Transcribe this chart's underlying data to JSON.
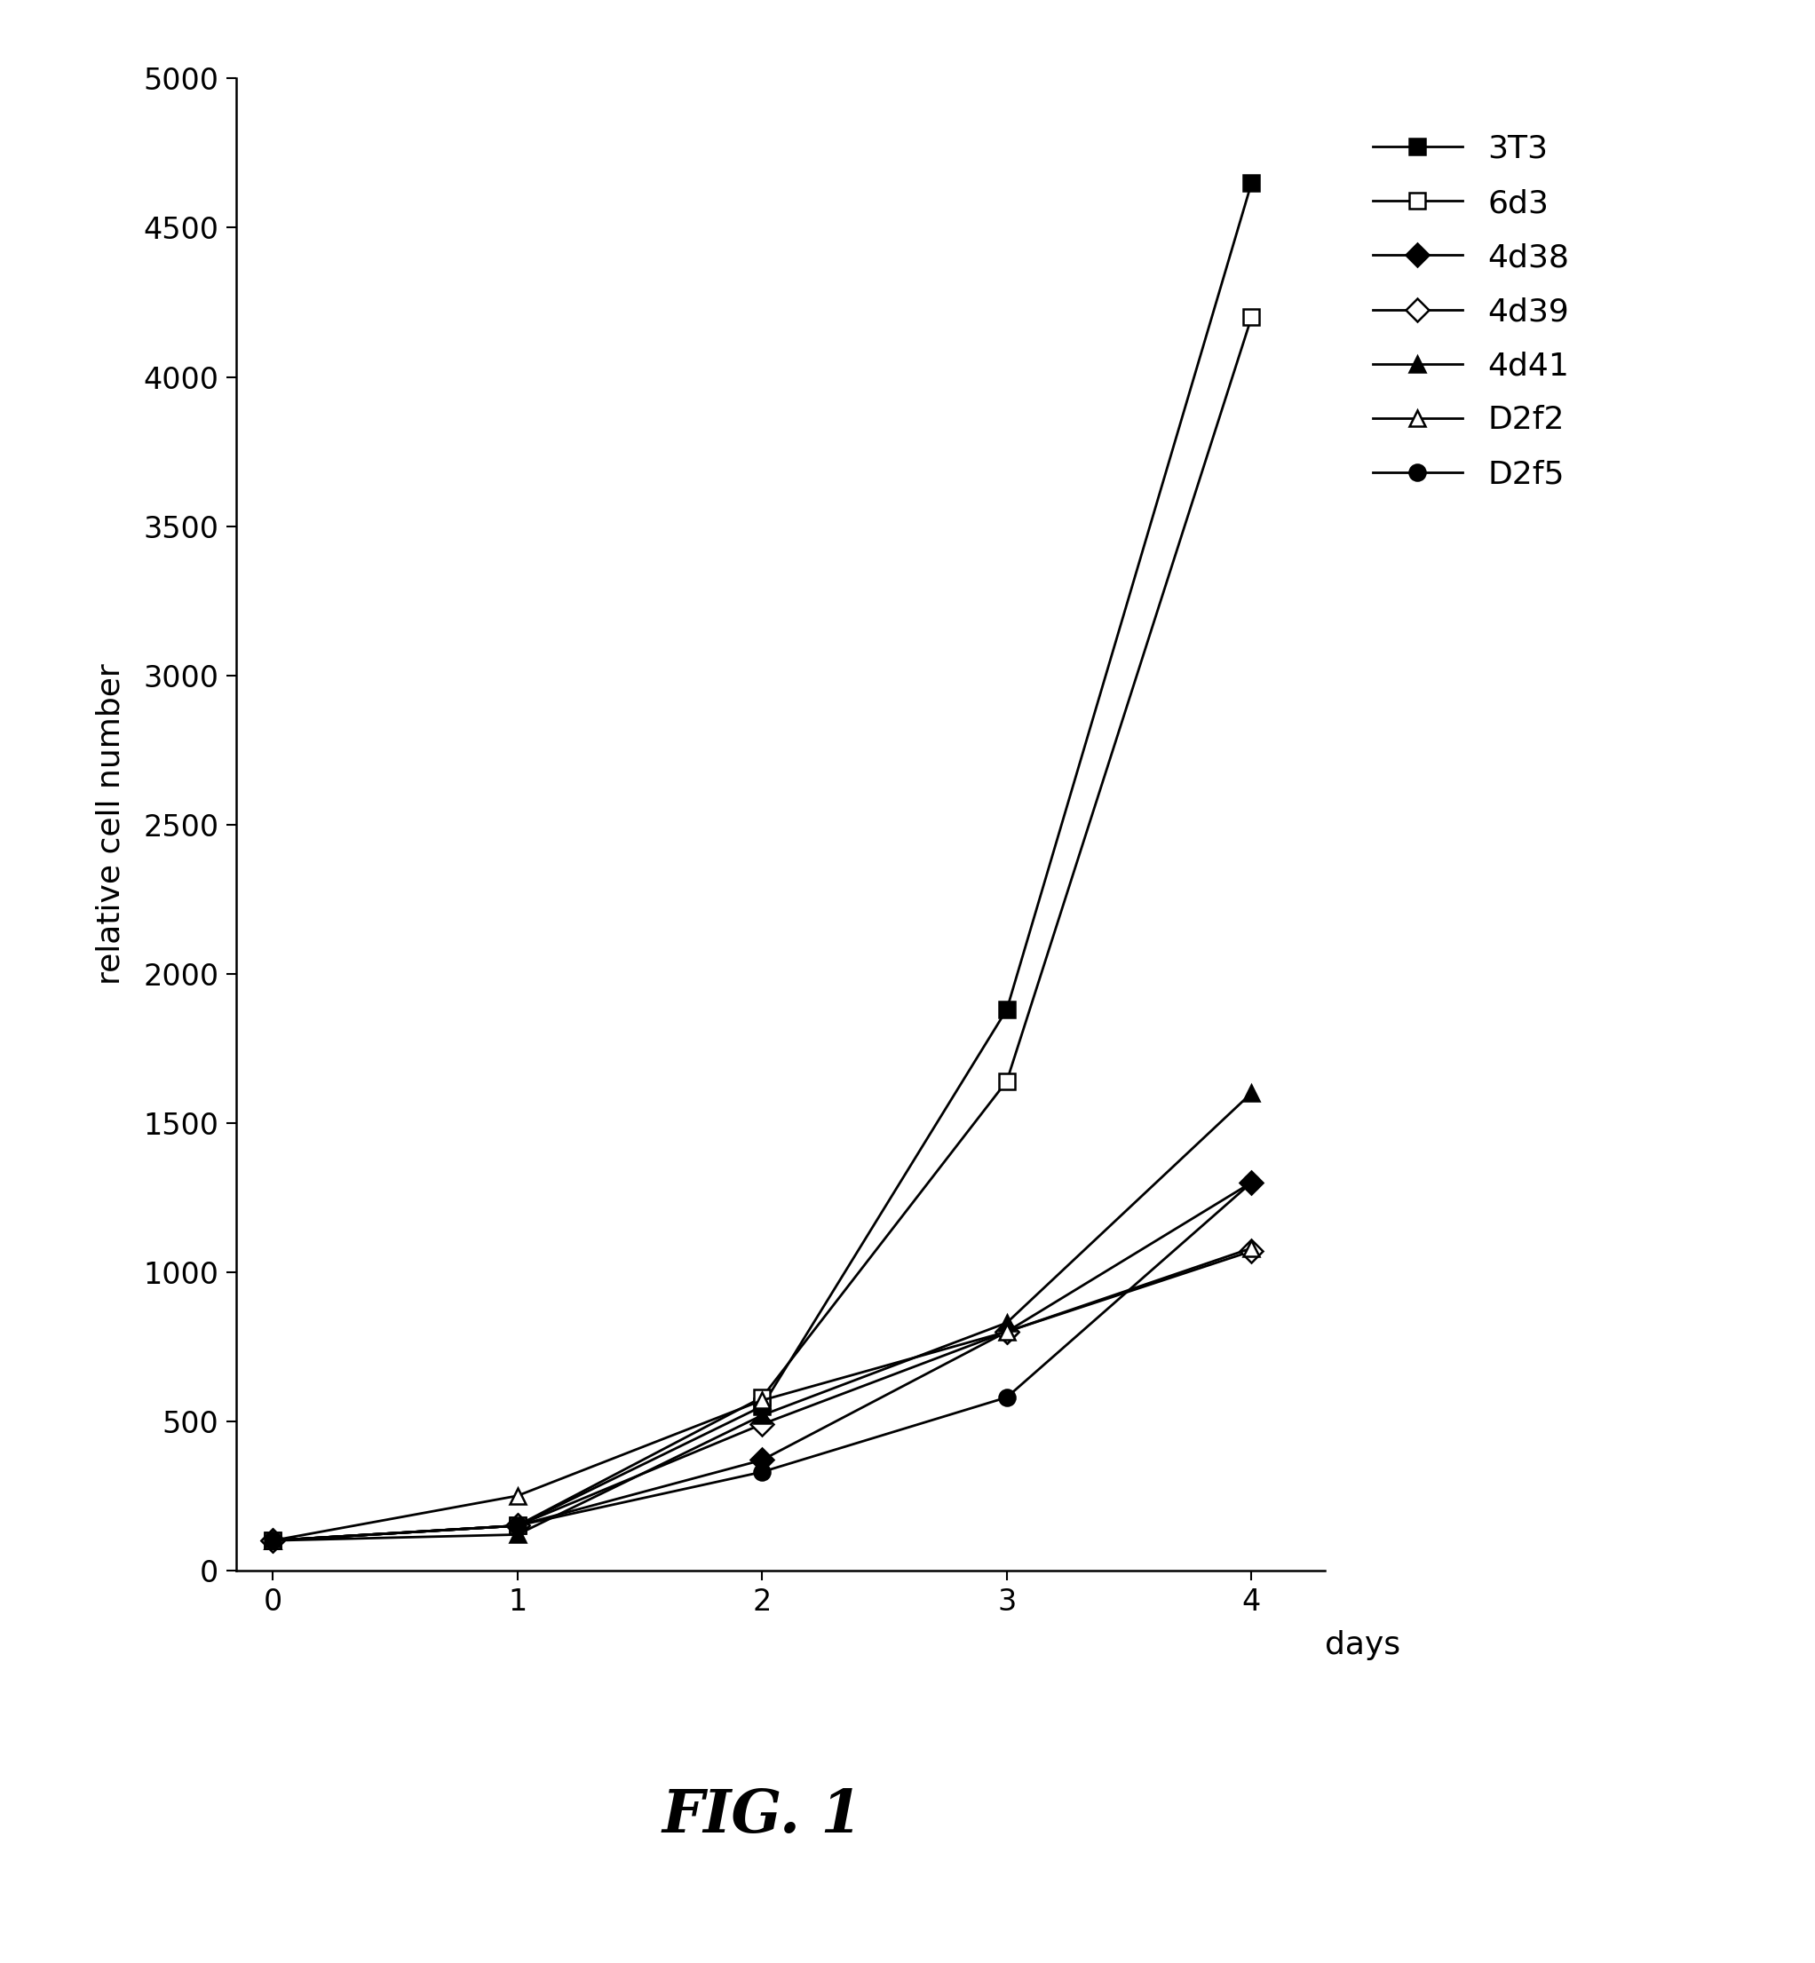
{
  "series": [
    {
      "label": "3T3",
      "x": [
        0,
        1,
        2,
        3,
        4
      ],
      "y": [
        100,
        150,
        550,
        1880,
        4650
      ],
      "marker": "s",
      "filled": true,
      "color": "black"
    },
    {
      "label": "6d3",
      "x": [
        0,
        1,
        2,
        3,
        4
      ],
      "y": [
        100,
        150,
        580,
        1640,
        4200
      ],
      "marker": "s",
      "filled": false,
      "color": "black"
    },
    {
      "label": "4d38",
      "x": [
        0,
        1,
        2,
        3,
        4
      ],
      "y": [
        100,
        150,
        370,
        800,
        1300
      ],
      "marker": "D",
      "filled": true,
      "color": "black"
    },
    {
      "label": "4d39",
      "x": [
        0,
        1,
        2,
        3,
        4
      ],
      "y": [
        100,
        150,
        490,
        800,
        1070
      ],
      "marker": "D",
      "filled": false,
      "color": "black"
    },
    {
      "label": "4d41",
      "x": [
        0,
        1,
        2,
        3,
        4
      ],
      "y": [
        100,
        120,
        520,
        830,
        1600
      ],
      "marker": "^",
      "filled": true,
      "color": "black"
    },
    {
      "label": "D2f2",
      "x": [
        0,
        1,
        2,
        3,
        4
      ],
      "y": [
        100,
        250,
        570,
        800,
        1080
      ],
      "marker": "^",
      "filled": false,
      "color": "black"
    },
    {
      "label": "D2f5",
      "x": [
        0,
        1,
        2,
        3,
        4
      ],
      "y": [
        100,
        150,
        330,
        580,
        1300
      ],
      "marker": "o",
      "filled": true,
      "color": "black"
    }
  ],
  "ylabel": "relative cell number",
  "days_label": "days",
  "title": "FIG. 1",
  "xlim": [
    -0.15,
    4.3
  ],
  "ylim": [
    0,
    5000
  ],
  "yticks": [
    0,
    500,
    1000,
    1500,
    2000,
    2500,
    3000,
    3500,
    4000,
    4500,
    5000
  ],
  "xticks": [
    0,
    1,
    2,
    3,
    4
  ],
  "background_color": "#ffffff",
  "marker_size": 13,
  "line_width": 2.0,
  "legend_fontsize": 26,
  "axis_label_fontsize": 26,
  "tick_fontsize": 24,
  "title_fontsize": 48,
  "days_fontsize": 26
}
